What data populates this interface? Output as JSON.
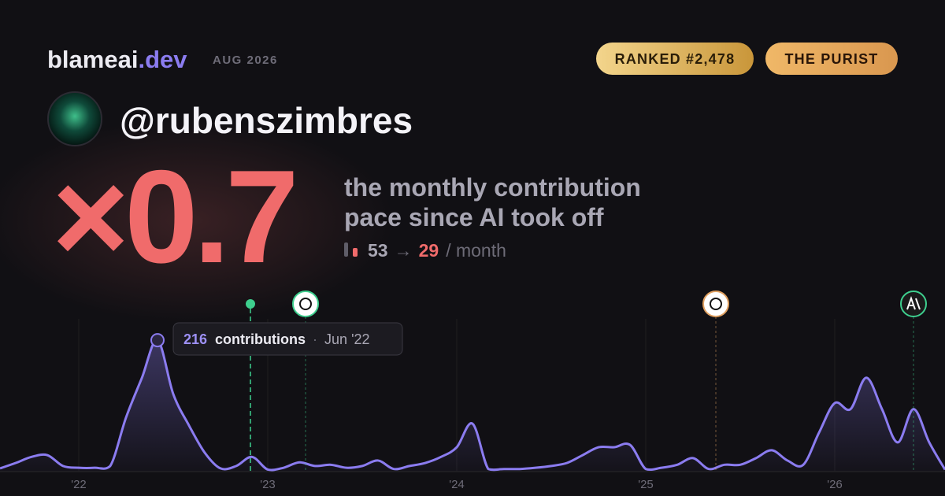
{
  "brand": {
    "name": "blameai",
    "tld": ".dev",
    "date": "AUG 2026"
  },
  "badges": [
    "RANKED #2,478",
    "THE PURIST"
  ],
  "handle": "@rubenszimbres",
  "multiplier": "×0.7",
  "description": [
    "the monthly contribution",
    "pace since AI took off"
  ],
  "pace": {
    "before": "53",
    "arrow": "→",
    "after": "29",
    "unit": "/ month"
  },
  "tooltip": {
    "value": "216",
    "label": "contributions",
    "separator": "·",
    "date": "Jun '22"
  },
  "chart_data": {
    "type": "area",
    "color": "#8b7cf0",
    "categories": [
      null,
      null,
      null,
      null,
      null,
      "'22",
      null,
      null,
      null,
      null,
      null,
      null,
      null,
      null,
      null,
      null,
      null,
      "'23",
      null,
      null,
      null,
      null,
      null,
      null,
      null,
      null,
      null,
      null,
      null,
      "'24",
      null,
      null,
      null,
      null,
      null,
      null,
      null,
      null,
      null,
      null,
      null,
      "'25",
      null,
      null,
      null,
      null,
      null,
      null,
      null,
      null,
      null,
      null,
      null,
      "'26",
      null,
      null,
      null,
      null,
      null,
      null,
      null
    ],
    "values": [
      4,
      13,
      23,
      26,
      8,
      5,
      5,
      8,
      88,
      153,
      216,
      127,
      75,
      30,
      4,
      8,
      23,
      2,
      5,
      14,
      8,
      10,
      5,
      8,
      17,
      3,
      8,
      13,
      23,
      39,
      78,
      3,
      3,
      3,
      5,
      8,
      13,
      26,
      39,
      39,
      43,
      3,
      5,
      10,
      21,
      3,
      10,
      10,
      21,
      34,
      17,
      10,
      63,
      112,
      102,
      154,
      102,
      47,
      102,
      47,
      2
    ],
    "ylim": [
      0,
      250
    ]
  }
}
